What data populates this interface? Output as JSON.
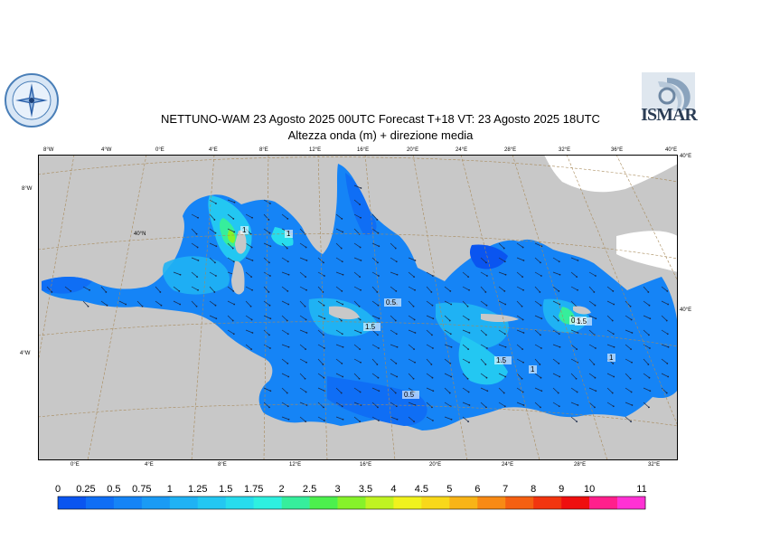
{
  "title": {
    "line1": "NETTUNO-WAM  23   Agosto  2025 00UTC Forecast T+18 VT: 23   Agosto  2025 18UTC",
    "line2": "Altezza onda (m) + direzione media"
  },
  "logos": {
    "right_text": "ISMAR",
    "right_icon": "ismar-logo",
    "left_icon": "meteorological-service-seal"
  },
  "top_ticks": [
    "8°W",
    "4°W",
    "0°E",
    "4°E",
    "8°E",
    "12°E",
    "16°E",
    "20°E",
    "24°E",
    "28°E",
    "32°E",
    "36°E",
    "40°E",
    "40°E"
  ],
  "bottom_ticks": [
    "0°E",
    "4°E",
    "8°E",
    "12°E",
    "16°E",
    "20°E",
    "24°E",
    "28°E",
    "32°E"
  ],
  "left_ticks": [
    "8°W",
    "40°N",
    "4°W"
  ],
  "right_ticks": [
    "40°E"
  ],
  "contour_labels": [
    "1",
    "1",
    "0.5",
    "1.5",
    "0.5",
    "1.5",
    "1",
    "1.5",
    "1",
    "0.5"
  ],
  "colorbar": {
    "labels": [
      "0",
      "0.25",
      "0.5",
      "0.75",
      "1",
      "1.25",
      "1.5",
      "1.75",
      "2",
      "2.5",
      "3",
      "3.5",
      "4",
      "4.5",
      "5",
      "6",
      "7",
      "8",
      "9",
      "10",
      "11"
    ],
    "colors": [
      "#0a55f0",
      "#0f6ef5",
      "#1584f6",
      "#1a9bf5",
      "#1fb2f4",
      "#23c7f2",
      "#27dced",
      "#2ef0e0",
      "#36ee9c",
      "#4cf04d",
      "#86f22a",
      "#c0f322",
      "#f0f21e",
      "#f8d81a",
      "#f8b417",
      "#f88a15",
      "#f56012",
      "#f2350f",
      "#ef0f0f",
      "#ff1f8c",
      "#ff31d4"
    ],
    "units": "m"
  },
  "map": {
    "land_color": "#c8c8c8",
    "background": "#ffffff",
    "grid_color": "#a88a5a"
  }
}
